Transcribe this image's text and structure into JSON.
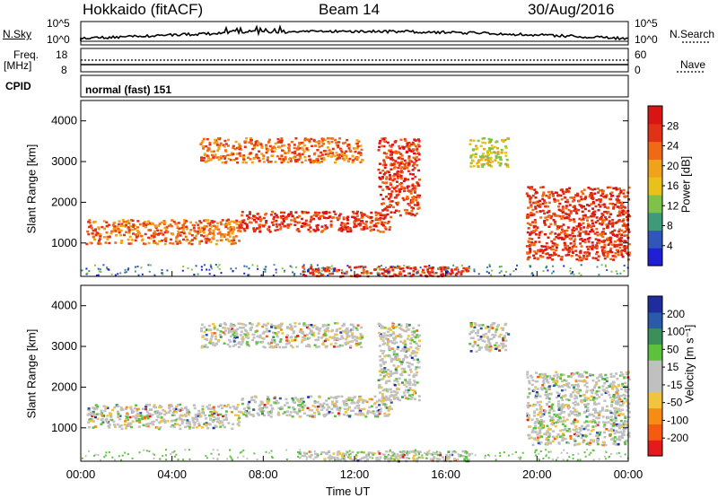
{
  "header": {
    "station": "Hokkaido (fitACF)",
    "beam": "Beam 14",
    "date": "30/Aug/2016"
  },
  "summary": {
    "nsky_label": "N.Sky",
    "nsky_ticks": [
      "10^5",
      "10^0"
    ],
    "nsearch_label": "N.Search",
    "nsearch_ticks": [
      "10^5",
      "10^0"
    ],
    "freq_label": [
      "Freq.",
      "[MHz]"
    ],
    "freq_ticks": [
      "18",
      "8"
    ],
    "nave_label": "Nave",
    "nave_ticks": [
      "60",
      "0"
    ],
    "cpid_label": "CPID",
    "cpid_value": "normal (fast) 151"
  },
  "colors": {
    "power": [
      "#1f1fd6",
      "#2f56b8",
      "#3f9a7a",
      "#7fc24a",
      "#e8c21a",
      "#f0a21a",
      "#f06a16",
      "#e23216",
      "#d81414"
    ],
    "velocity": [
      "#e41a1c",
      "#f55a10",
      "#f78c15",
      "#f2c33e",
      "#c0c0c0",
      "#c0c0c0",
      "#5cc23c",
      "#3a8f5a",
      "#2a5aaa",
      "#1e2c9e"
    ]
  },
  "chart_data": [
    {
      "type": "heatmap",
      "title": "",
      "quantity": "Power",
      "xlabel": "",
      "ylabel": "Slant Range [km]",
      "x_ticks": [
        "00:00",
        "04:00",
        "08:00",
        "12:00",
        "16:00",
        "20:00",
        "00:00"
      ],
      "x_range_hours": [
        0,
        24
      ],
      "y_ticks": [
        1000,
        2000,
        3000,
        4000
      ],
      "y_range_km": [
        180,
        4500
      ],
      "colorbar_label": "Power [dB]",
      "colorbar_ticks": [
        "28",
        "24",
        "20",
        "16",
        "12",
        "8",
        "4"
      ],
      "colorbar_range": [
        0,
        32
      ],
      "echo_bands": [
        {
          "t": [
            0.2,
            6.9
          ],
          "range": [
            1000,
            1600
          ],
          "level": 22
        },
        {
          "t": [
            6.9,
            13.6
          ],
          "range": [
            1300,
            1800
          ],
          "level": 28
        },
        {
          "t": [
            13.0,
            14.8
          ],
          "range": [
            1700,
            3600
          ],
          "level": 27
        },
        {
          "t": [
            5.2,
            12.3
          ],
          "range": [
            3000,
            3600
          ],
          "level": 24
        },
        {
          "t": [
            9.5,
            17.0
          ],
          "range": [
            200,
            450
          ],
          "level": 28
        },
        {
          "t": [
            19.5,
            24.0
          ],
          "range": [
            600,
            2400
          ],
          "level": 26
        },
        {
          "t": [
            17.0,
            18.7
          ],
          "range": [
            2900,
            3600
          ],
          "level": 16
        }
      ]
    },
    {
      "type": "heatmap",
      "title": "",
      "quantity": "Velocity",
      "xlabel": "Time UT",
      "ylabel": "Slant Range [km]",
      "x_ticks": [
        "00:00",
        "04:00",
        "08:00",
        "12:00",
        "16:00",
        "20:00",
        "00:00"
      ],
      "x_range_hours": [
        0,
        24
      ],
      "y_ticks": [
        1000,
        2000,
        3000,
        4000
      ],
      "y_range_km": [
        180,
        4500
      ],
      "colorbar_label": "Velocity [m s⁻¹]",
      "colorbar_ticks": [
        "200",
        "100",
        "50",
        "15",
        "-15",
        "-50",
        "-100",
        "-200"
      ],
      "colorbar_range": [
        -250,
        250
      ]
    }
  ]
}
